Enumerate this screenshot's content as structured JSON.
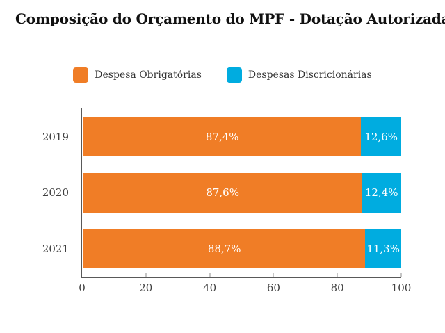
{
  "chart_data": {
    "type": "bar",
    "orientation": "horizontal",
    "stacked": true,
    "title": "Composição do Orçamento do MPF - Dotação Autorizada (em %)",
    "categories": [
      "2019",
      "2020",
      "2021"
    ],
    "series": [
      {
        "name": "Despesa Obrigatórias",
        "color": "#F07D26",
        "values": [
          87.4,
          87.6,
          88.7
        ],
        "value_labels": [
          "87,4%",
          "87,6%",
          "88,7%"
        ]
      },
      {
        "name": "Despesas Discricionárias",
        "color": "#00ACE0",
        "values": [
          12.6,
          12.4,
          11.3
        ],
        "value_labels": [
          "12,6%",
          "12,4%",
          "11,3%"
        ]
      }
    ],
    "xlabel": "",
    "ylabel": "",
    "xlim": [
      0,
      100
    ],
    "xticks": [
      "0",
      "20",
      "40",
      "60",
      "80",
      "100"
    ],
    "legend_position": "top-center",
    "grid": false,
    "value_label_color": "#FFFFFF"
  },
  "styles": {
    "background": "#FFFFFF",
    "axis_line_color": "#595959",
    "tick_mark_color": "#8C8C8C",
    "tick_label_color": "#404040",
    "category_label_color": "#404040",
    "legend_text_color": "#333333",
    "title_color": "#111111"
  }
}
